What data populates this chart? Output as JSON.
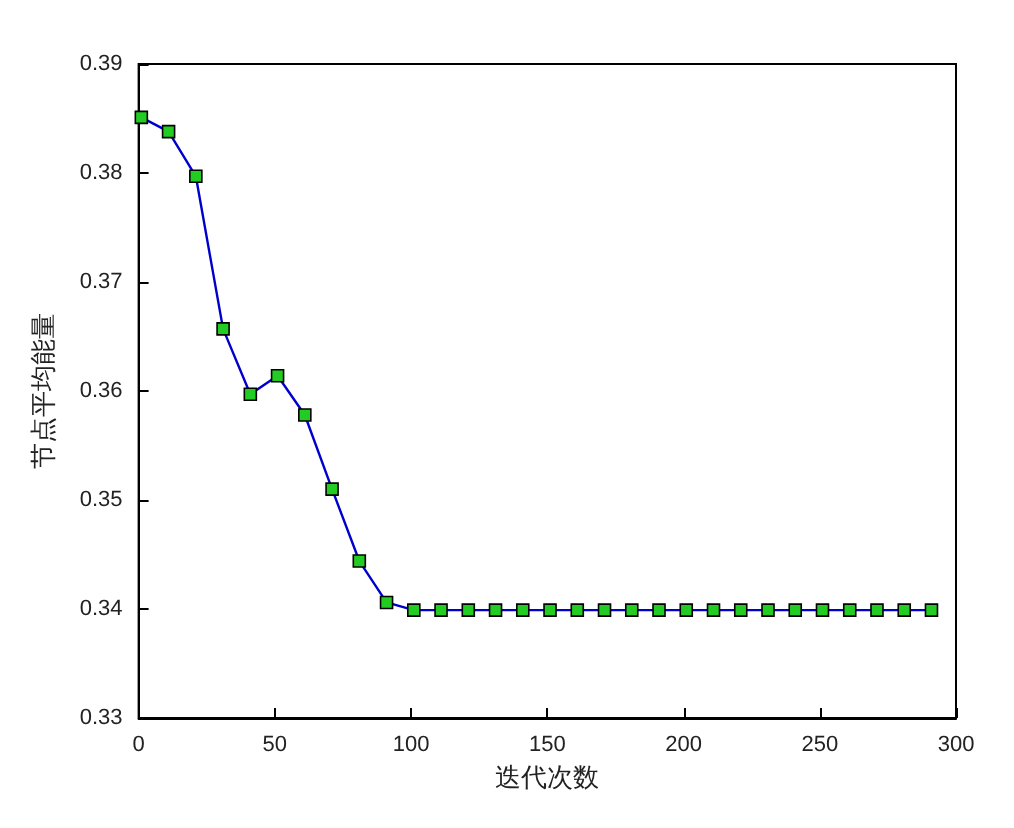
{
  "chart_data": {
    "type": "line",
    "xlabel": "迭代次数",
    "ylabel": "节点平均能量",
    "x": [
      1,
      11,
      21,
      31,
      41,
      51,
      61,
      71,
      81,
      91,
      101,
      111,
      121,
      131,
      141,
      151,
      161,
      171,
      181,
      191,
      201,
      211,
      221,
      231,
      241,
      251,
      261,
      271,
      281,
      291
    ],
    "series": [
      {
        "color": "#0000cc",
        "values": [
          0.3851,
          0.3838,
          0.3797,
          0.3657,
          0.3597,
          0.3614,
          0.3578,
          0.351,
          0.3444,
          0.3406,
          0.3399,
          0.3399,
          0.3399,
          0.3399,
          0.3399,
          0.3399,
          0.3399,
          0.3399,
          0.3399,
          0.3399,
          0.3399,
          0.3399,
          0.3399,
          0.3399,
          0.3399,
          0.3399,
          0.3399,
          0.3399,
          0.3399,
          0.3399
        ]
      }
    ],
    "marker": "square",
    "line_style": "solid",
    "grid": false,
    "xlim": [
      0,
      300
    ],
    "xticks": [
      0,
      50,
      100,
      150,
      200,
      250,
      300
    ],
    "ylim": [
      0.33,
      0.39
    ],
    "yticks": [
      0.33,
      0.34,
      0.35,
      0.36,
      0.37,
      0.38,
      0.39
    ]
  }
}
